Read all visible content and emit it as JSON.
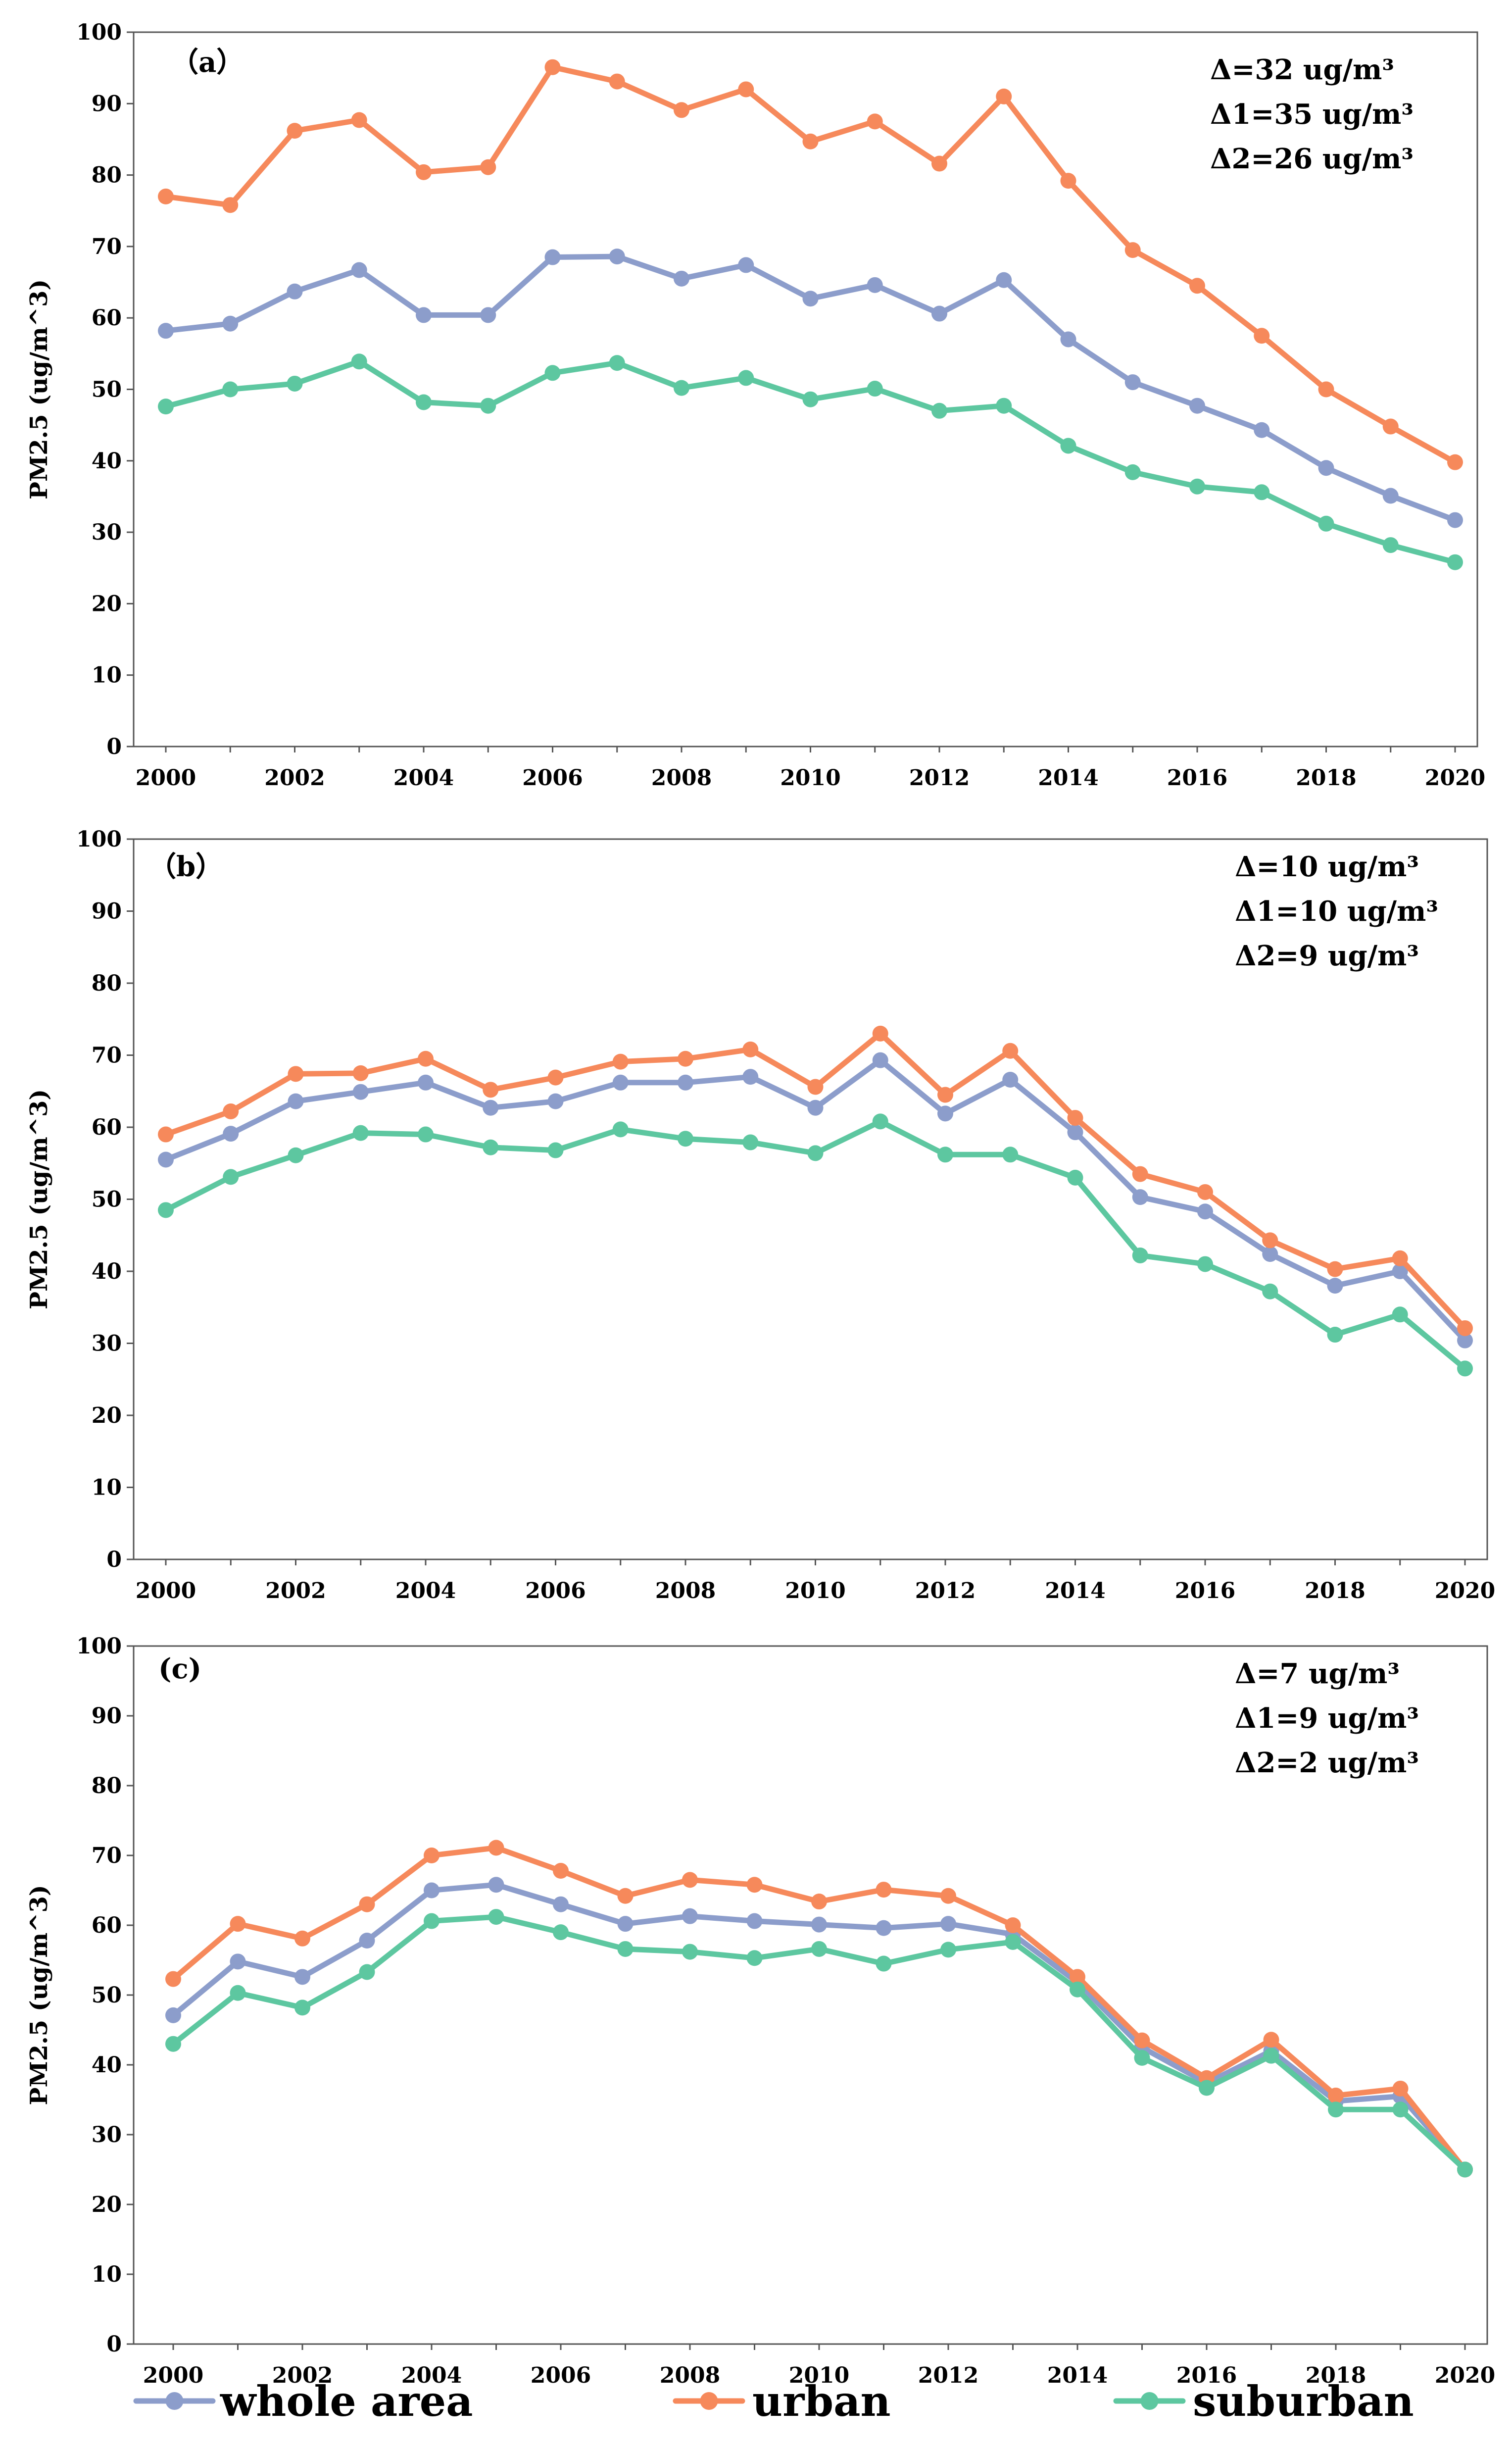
{
  "series_style": [
    {
      "name": "whole area",
      "color": "#8C9DCB"
    },
    {
      "name": "urban",
      "color": "#F6895B"
    },
    {
      "name": "suburban",
      "color": "#5DC7A0"
    }
  ],
  "legend": [
    "whole area",
    "urban",
    "suburban"
  ],
  "chart_data": [
    {
      "type": "line",
      "panel_label": "（a）",
      "ylabel": "PM2.5 (ug/m^3)",
      "xlabel": "",
      "ylim": [
        0,
        100
      ],
      "yticks": [
        0,
        10,
        20,
        30,
        40,
        50,
        60,
        70,
        80,
        90,
        100
      ],
      "xticks": [
        2000,
        2002,
        2004,
        2006,
        2008,
        2010,
        2012,
        2014,
        2016,
        2018,
        2020
      ],
      "x": [
        2000,
        2001,
        2002,
        2003,
        2004,
        2005,
        2006,
        2007,
        2008,
        2009,
        2010,
        2011,
        2012,
        2013,
        2014,
        2015,
        2016,
        2017,
        2018,
        2019,
        2020
      ],
      "annotations": [
        "Δ=32  ug/m³",
        "Δ1=35 ug/m³",
        "Δ2=26 ug/m³"
      ],
      "series": [
        {
          "name": "whole area",
          "values": [
            58.2,
            59.2,
            63.7,
            66.7,
            60.4,
            60.4,
            68.5,
            68.6,
            65.5,
            67.4,
            62.7,
            64.6,
            60.6,
            65.3,
            57.0,
            51.0,
            47.7,
            44.3,
            39.0,
            35.1,
            31.7
          ]
        },
        {
          "name": "urban",
          "values": [
            77.0,
            75.8,
            86.2,
            87.7,
            80.4,
            81.1,
            95.1,
            93.1,
            89.1,
            92.0,
            84.7,
            87.5,
            81.6,
            91.0,
            79.2,
            69.5,
            64.5,
            57.5,
            50.0,
            44.8,
            39.8
          ]
        },
        {
          "name": "suburban",
          "values": [
            47.6,
            50.0,
            50.8,
            53.9,
            48.2,
            47.7,
            52.3,
            53.7,
            50.2,
            51.6,
            48.6,
            50.1,
            47.0,
            47.7,
            42.1,
            38.4,
            36.4,
            35.6,
            31.2,
            28.2,
            25.8
          ]
        }
      ]
    },
    {
      "type": "line",
      "panel_label": "（b）",
      "ylabel": "PM2.5 (ug/m^3)",
      "xlabel": "",
      "ylim": [
        0,
        100
      ],
      "yticks": [
        0,
        10,
        20,
        30,
        40,
        50,
        60,
        70,
        80,
        90,
        100
      ],
      "xticks": [
        2000,
        2002,
        2004,
        2006,
        2008,
        2010,
        2012,
        2014,
        2016,
        2018,
        2020
      ],
      "x": [
        2000,
        2001,
        2002,
        2003,
        2004,
        2005,
        2006,
        2007,
        2008,
        2009,
        2010,
        2011,
        2012,
        2013,
        2014,
        2015,
        2016,
        2017,
        2018,
        2019,
        2020
      ],
      "annotations": [
        "Δ=10 ug/m³",
        "Δ1=10 ug/m³",
        "Δ2=9 ug/m³"
      ],
      "series": [
        {
          "name": "whole area",
          "values": [
            55.5,
            59.1,
            63.6,
            64.9,
            66.2,
            62.7,
            63.6,
            66.2,
            66.2,
            67.0,
            62.7,
            69.3,
            61.9,
            66.6,
            59.3,
            50.3,
            48.3,
            42.4,
            38.0,
            40.0,
            30.4
          ]
        },
        {
          "name": "urban",
          "values": [
            59.0,
            62.2,
            67.4,
            67.5,
            69.5,
            65.2,
            66.9,
            69.1,
            69.5,
            70.8,
            65.6,
            73.0,
            64.5,
            70.6,
            61.3,
            53.5,
            51.0,
            44.3,
            40.3,
            41.8,
            32.1
          ]
        },
        {
          "name": "suburban",
          "values": [
            48.5,
            53.1,
            56.1,
            59.2,
            59.0,
            57.2,
            56.8,
            59.7,
            58.4,
            57.9,
            56.4,
            60.8,
            56.2,
            56.2,
            53.0,
            42.2,
            41.0,
            37.2,
            31.2,
            34.0,
            26.5
          ]
        }
      ]
    },
    {
      "type": "line",
      "panel_label": "(c)",
      "ylabel": "PM2.5 (ug/m^3)",
      "xlabel": "",
      "ylim": [
        0,
        100
      ],
      "yticks": [
        0,
        10,
        20,
        30,
        40,
        50,
        60,
        70,
        80,
        90,
        100
      ],
      "xticks": [
        2000,
        2002,
        2004,
        2006,
        2008,
        2010,
        2012,
        2014,
        2016,
        2018,
        2020
      ],
      "x": [
        2000,
        2001,
        2002,
        2003,
        2004,
        2005,
        2006,
        2007,
        2008,
        2009,
        2010,
        2011,
        2012,
        2013,
        2014,
        2015,
        2016,
        2017,
        2018,
        2019,
        2020
      ],
      "annotations": [
        "Δ=7  ug/m³",
        "Δ1=9 ug/m³",
        "Δ2=2 ug/m³"
      ],
      "series": [
        {
          "name": "whole area",
          "values": [
            47.1,
            54.8,
            52.6,
            57.8,
            65.0,
            65.8,
            63.0,
            60.2,
            61.3,
            60.6,
            60.1,
            59.6,
            60.2,
            58.7,
            51.8,
            42.5,
            37.4,
            42.0,
            34.8,
            35.5,
            25.0
          ]
        },
        {
          "name": "urban",
          "values": [
            52.3,
            60.2,
            58.1,
            63.0,
            70.0,
            71.1,
            67.8,
            64.2,
            66.5,
            65.8,
            63.4,
            65.1,
            64.2,
            60.0,
            52.6,
            43.5,
            38.1,
            43.6,
            35.6,
            36.6,
            25.0
          ]
        },
        {
          "name": "suburban",
          "values": [
            43.0,
            50.3,
            48.2,
            53.3,
            60.6,
            61.2,
            59.0,
            56.6,
            56.2,
            55.3,
            56.6,
            54.5,
            56.5,
            57.6,
            50.8,
            41.0,
            36.7,
            41.3,
            33.6,
            33.6,
            25.0
          ]
        }
      ]
    }
  ]
}
